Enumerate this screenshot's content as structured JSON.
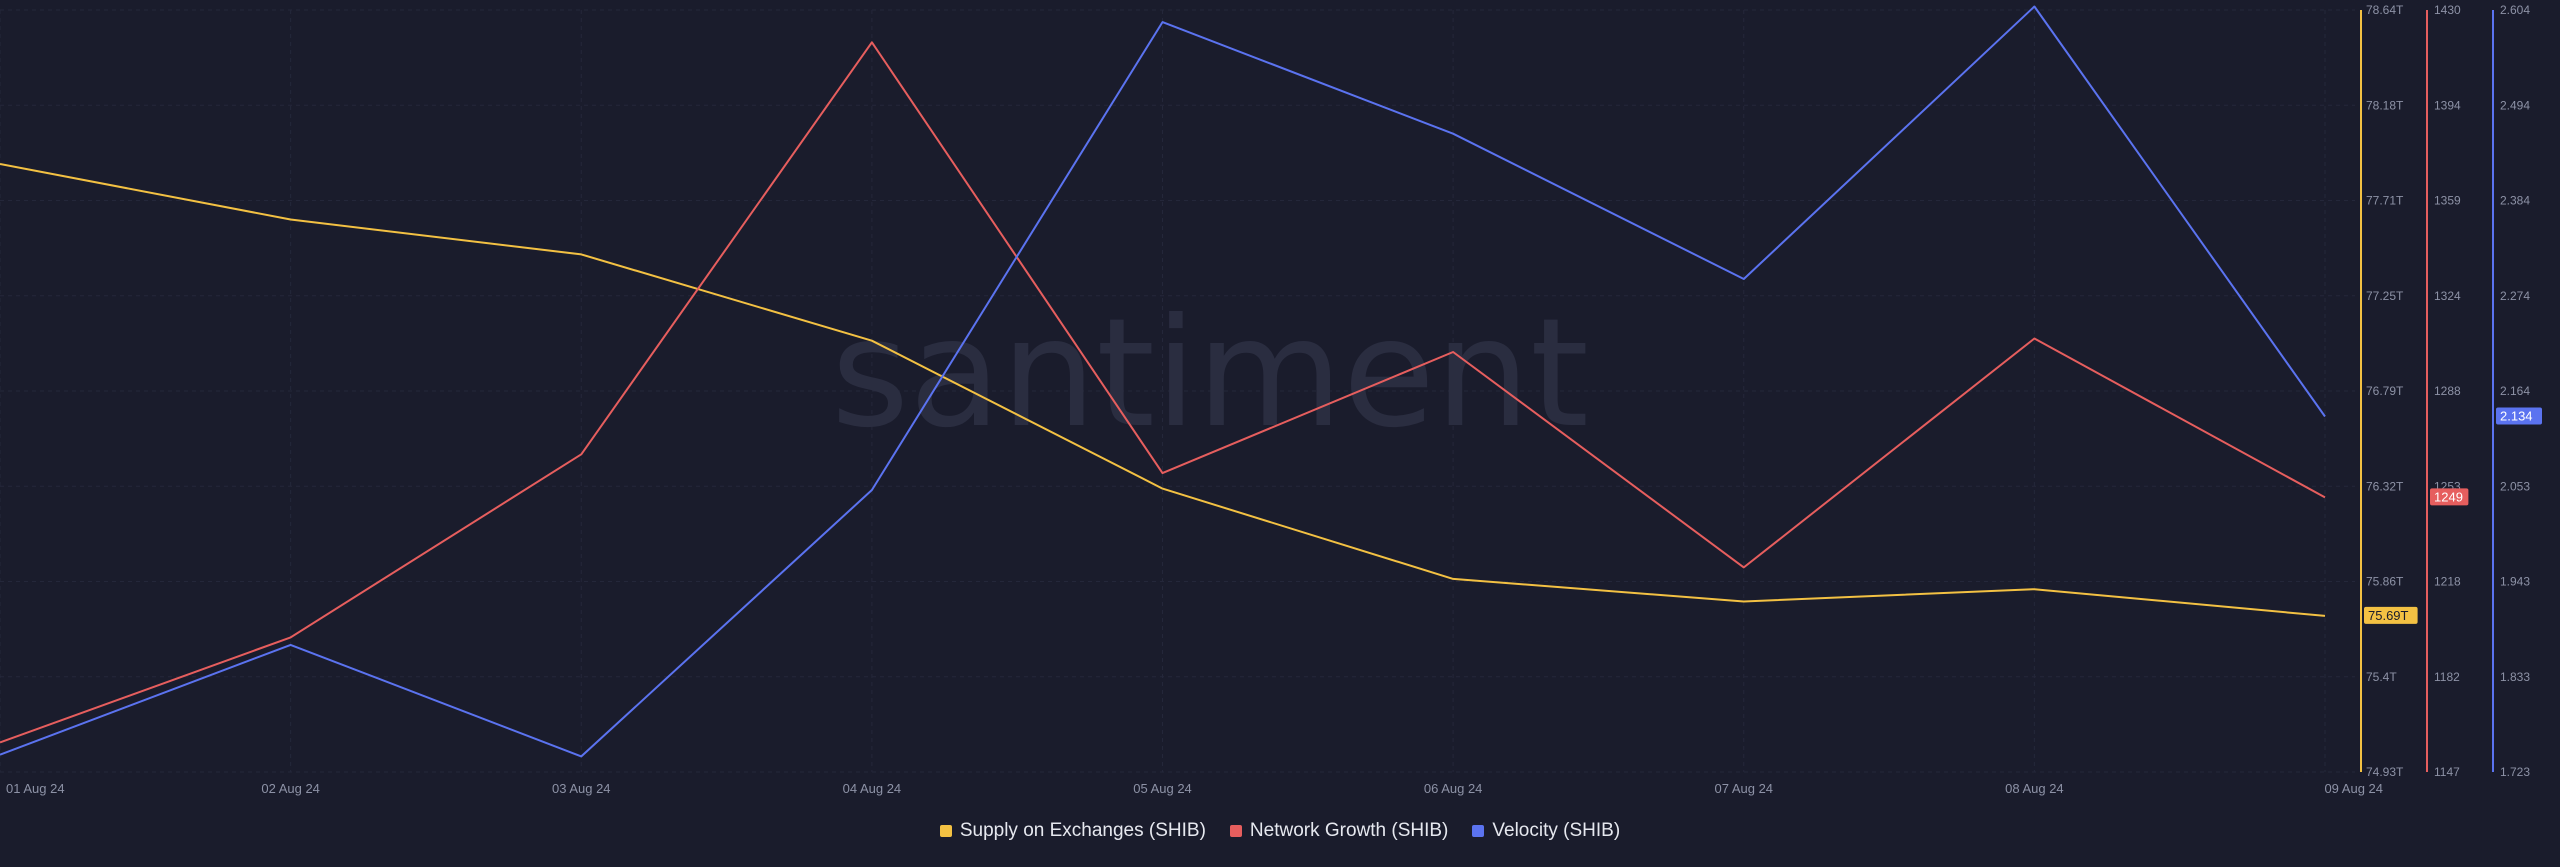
{
  "watermark": "santiment",
  "chart_data": {
    "type": "line",
    "title": "",
    "xlabel": "",
    "categories": [
      "01 Aug 24",
      "02 Aug 24",
      "03 Aug 24",
      "04 Aug 24",
      "05 Aug 24",
      "06 Aug 24",
      "07 Aug 24",
      "08 Aug 24",
      "09 Aug 24"
    ],
    "grid": true,
    "legend_position": "bottom-center",
    "axes": [
      {
        "id": "supply",
        "ticks": [
          "78.64T",
          "78.18T",
          "77.71T",
          "77.25T",
          "76.79T",
          "76.32T",
          "75.86T",
          "75.4T",
          "74.93T"
        ],
        "range": [
          74.93,
          78.64
        ],
        "unit": "T",
        "color": "#f3c143"
      },
      {
        "id": "growth",
        "ticks": [
          "1430",
          "1394",
          "1359",
          "1324",
          "1288",
          "1253",
          "1218",
          "1182",
          "1147"
        ],
        "range": [
          1147,
          1430
        ],
        "color": "#e65e5e"
      },
      {
        "id": "velocity",
        "ticks": [
          "2.604",
          "2.494",
          "2.384",
          "2.274",
          "2.164",
          "2.053",
          "1.943",
          "1.833",
          "1.723"
        ],
        "range": [
          1.723,
          2.604
        ],
        "color": "#5b73f0"
      }
    ],
    "series": [
      {
        "name": "Supply on Exchanges (SHIB)",
        "axis": "supply",
        "color": "#f3c143",
        "values": [
          77.89,
          77.62,
          77.45,
          77.03,
          76.31,
          75.87,
          75.76,
          75.82,
          75.69
        ],
        "current_label": "75.69T"
      },
      {
        "name": "Network Growth (SHIB)",
        "axis": "growth",
        "color": "#e65e5e",
        "values": [
          1158,
          1197,
          1265,
          1418,
          1258,
          1303,
          1223,
          1308,
          1249
        ],
        "current_label": "1249"
      },
      {
        "name": "Velocity (SHIB)",
        "axis": "velocity",
        "color": "#5b73f0",
        "values": [
          1.743,
          1.87,
          1.741,
          2.049,
          2.59,
          2.461,
          2.293,
          2.608,
          2.134
        ],
        "current_label": "2.134"
      }
    ]
  }
}
